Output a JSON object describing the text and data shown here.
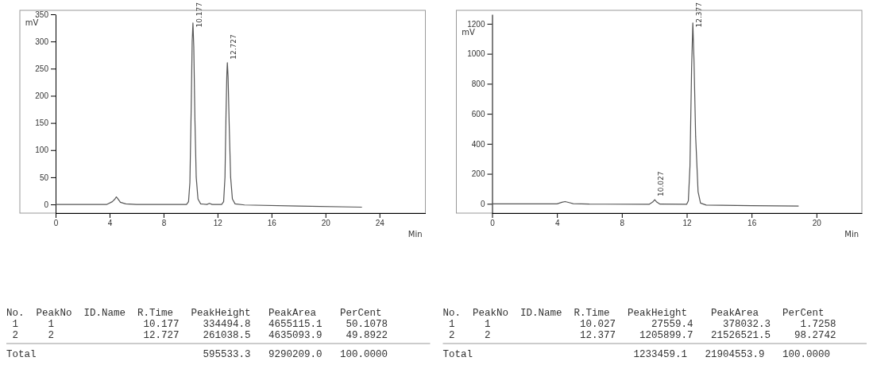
{
  "chart_data": [
    {
      "type": "line",
      "xlabel": "Min",
      "ylabel": "mV",
      "xlim": [
        0,
        27.4
      ],
      "ylim": [
        -16,
        350
      ],
      "xticks": [
        0,
        4,
        8,
        12,
        16,
        20,
        24
      ],
      "yticks": [
        0,
        50,
        100,
        150,
        200,
        250,
        300,
        350
      ],
      "grid": false,
      "marker": "none",
      "line_style": "solid",
      "x": [
        0,
        3.8,
        4.2,
        4.4,
        4.5,
        4.6,
        4.8,
        5.2,
        6,
        9.7,
        9.85,
        9.95,
        10.05,
        10.12,
        10.177,
        10.24,
        10.32,
        10.42,
        10.55,
        10.75,
        11.2,
        11.4,
        11.6,
        12.3,
        12.45,
        12.55,
        12.63,
        12.69,
        12.727,
        12.78,
        12.87,
        12.97,
        13.1,
        13.3,
        14,
        18,
        22.7
      ],
      "series": [
        {
          "color": "#555555",
          "values": [
            0,
            0,
            5,
            10,
            14,
            11,
            4,
            1,
            0,
            0,
            5,
            40,
            180,
            300,
            334,
            290,
            160,
            50,
            10,
            1,
            0,
            2,
            0,
            0,
            5,
            50,
            170,
            240,
            261,
            235,
            140,
            50,
            10,
            1,
            -1,
            -3,
            -5
          ]
        }
      ],
      "annotations": [
        {
          "text": "10.177",
          "x": 10.177,
          "y": 334
        },
        {
          "text": "12.727",
          "x": 12.727,
          "y": 261
        },
        "No.  PeakNo  ID.Name  R.Time   PeakHeight   PeakArea    PerCent",
        " 1     1               10.177    334494.8   4655115.1    50.1078",
        " 2     2               12.727    261038.5   4635093.9    49.8922",
        "Total                            595533.3   9290209.0   100.0000"
      ]
    },
    {
      "type": "line",
      "xlabel": "Min",
      "ylabel": "mV",
      "xlim": [
        0,
        22.8
      ],
      "ylim": [
        -62,
        1263
      ],
      "xticks": [
        0,
        4,
        8,
        12,
        16,
        20
      ],
      "yticks": [
        0,
        200,
        400,
        600,
        800,
        1000,
        1200
      ],
      "grid": false,
      "marker": "none",
      "line_style": "solid",
      "x": [
        0,
        4,
        4.3,
        4.5,
        4.75,
        5,
        6,
        9.7,
        9.9,
        10.027,
        10.15,
        10.35,
        12,
        12.1,
        12.2,
        12.3,
        12.377,
        12.45,
        12.55,
        12.7,
        12.85,
        13.2,
        16,
        18.9
      ],
      "series": [
        {
          "color": "#555555",
          "values": [
            0,
            0,
            10,
            15,
            8,
            1,
            -2,
            -3,
            12,
            28,
            12,
            -2,
            -3,
            20,
            250,
            900,
            1206,
            950,
            450,
            80,
            5,
            -8,
            -12,
            -15
          ]
        }
      ],
      "annotations": [
        {
          "text": "10.027",
          "x": 10.027,
          "y": 28
        },
        {
          "text": "12.377",
          "x": 12.377,
          "y": 1206
        },
        "No.  PeakNo  ID.Name  R.Time   PeakHeight    PeakArea    PerCent",
        " 1     1               10.027      27559.4     378032.3     1.7258",
        " 2     2               12.377    1205899.7   21526521.5    98.2742",
        "Total                           1233459.1   21904553.9   100.0000"
      ]
    }
  ]
}
